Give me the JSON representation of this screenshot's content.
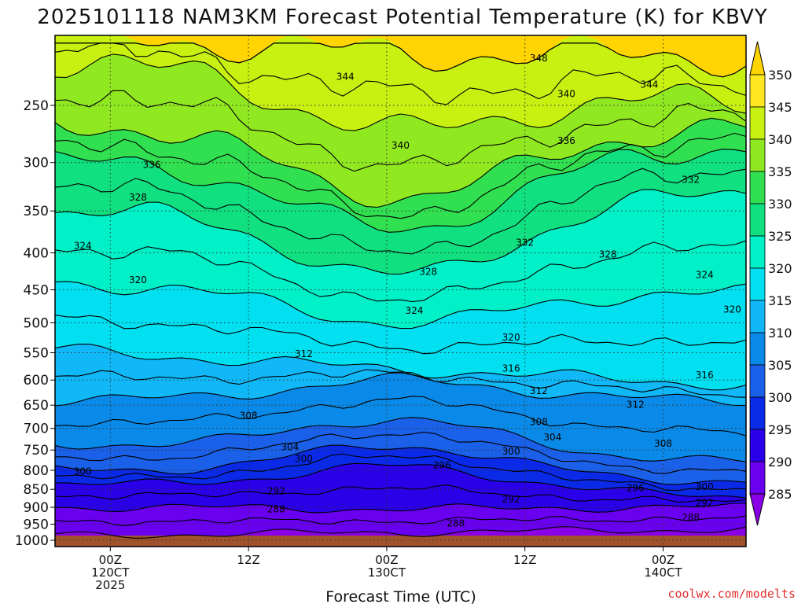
{
  "chart_data": {
    "type": "contour",
    "title": "2025101118 NAM3KM Forecast Potential Temperature (K) for KBVY",
    "xlabel": "Forecast Time (UTC)",
    "ylabel": "",
    "credit": "coolwx.com/modelts",
    "x_range_hours": [
      -4,
      46
    ],
    "y_range_hpa": [
      200,
      1000
    ],
    "y_ticks": [
      250,
      300,
      350,
      400,
      450,
      500,
      550,
      600,
      650,
      700,
      750,
      800,
      850,
      900,
      950,
      1000
    ],
    "x_ticks": [
      {
        "hour": 0,
        "lines": [
          "00Z",
          "120CT",
          "2025"
        ]
      },
      {
        "hour": 10,
        "lines": [
          "12Z"
        ]
      },
      {
        "hour": 20,
        "lines": [
          "00Z",
          "130CT"
        ]
      },
      {
        "hour": 30,
        "lines": [
          "12Z"
        ]
      },
      {
        "hour": 40,
        "lines": [
          "00Z",
          "140CT"
        ]
      }
    ],
    "colorbar": {
      "levels": [
        285,
        290,
        295,
        300,
        305,
        310,
        315,
        320,
        325,
        330,
        335,
        340,
        345,
        350
      ],
      "colors": [
        "#8a00e6",
        "#6a00f0",
        "#2a00e8",
        "#0a2ae8",
        "#1a60e8",
        "#0a8ae8",
        "#10b8f8",
        "#00e0f0",
        "#00f0c8",
        "#10e080",
        "#30e050",
        "#90e820",
        "#c8f010",
        "#ffe820",
        "#ffd400"
      ]
    },
    "contour_labels": [
      {
        "value": 348,
        "hour": 31,
        "hpa": 215
      },
      {
        "value": 344,
        "hour": 17,
        "hpa": 228
      },
      {
        "value": 344,
        "hour": 39,
        "hpa": 234
      },
      {
        "value": 340,
        "hour": 33,
        "hpa": 241
      },
      {
        "value": 340,
        "hour": 21,
        "hpa": 284
      },
      {
        "value": 336,
        "hour": 3,
        "hpa": 302
      },
      {
        "value": 336,
        "hour": 33,
        "hpa": 280
      },
      {
        "value": 332,
        "hour": 42,
        "hpa": 317
      },
      {
        "value": 332,
        "hour": 30,
        "hpa": 387
      },
      {
        "value": 328,
        "hour": 2,
        "hpa": 335
      },
      {
        "value": 328,
        "hour": 36,
        "hpa": 402
      },
      {
        "value": 328,
        "hour": 23,
        "hpa": 425
      },
      {
        "value": 324,
        "hour": -2,
        "hpa": 391
      },
      {
        "value": 324,
        "hour": 43,
        "hpa": 429
      },
      {
        "value": 324,
        "hour": 22,
        "hpa": 481
      },
      {
        "value": 320,
        "hour": 2,
        "hpa": 436
      },
      {
        "value": 320,
        "hour": 45,
        "hpa": 479
      },
      {
        "value": 320,
        "hour": 29,
        "hpa": 524
      },
      {
        "value": 316,
        "hour": 29,
        "hpa": 578
      },
      {
        "value": 316,
        "hour": 43,
        "hpa": 591
      },
      {
        "value": 312,
        "hour": 14,
        "hpa": 552
      },
      {
        "value": 312,
        "hour": 31,
        "hpa": 621
      },
      {
        "value": 312,
        "hour": 38,
        "hpa": 649
      },
      {
        "value": 308,
        "hour": 10,
        "hpa": 672
      },
      {
        "value": 308,
        "hour": 31,
        "hpa": 686
      },
      {
        "value": 308,
        "hour": 40,
        "hpa": 735
      },
      {
        "value": 304,
        "hour": 13,
        "hpa": 743
      },
      {
        "value": 304,
        "hour": 32,
        "hpa": 720
      },
      {
        "value": 300,
        "hour": 14,
        "hpa": 771
      },
      {
        "value": 300,
        "hour": 29,
        "hpa": 753
      },
      {
        "value": 300,
        "hour": 43,
        "hpa": 843
      },
      {
        "value": 300,
        "hour": -2,
        "hpa": 803
      },
      {
        "value": 296,
        "hour": 24,
        "hpa": 787
      },
      {
        "value": 296,
        "hour": 38,
        "hpa": 846
      },
      {
        "value": 292,
        "hour": 12,
        "hpa": 855
      },
      {
        "value": 292,
        "hour": 29,
        "hpa": 878
      },
      {
        "value": 292,
        "hour": 43,
        "hpa": 888
      },
      {
        "value": 288,
        "hour": 12,
        "hpa": 906
      },
      {
        "value": 288,
        "hour": 25,
        "hpa": 947
      },
      {
        "value": 288,
        "hour": 42,
        "hpa": 930
      }
    ]
  }
}
